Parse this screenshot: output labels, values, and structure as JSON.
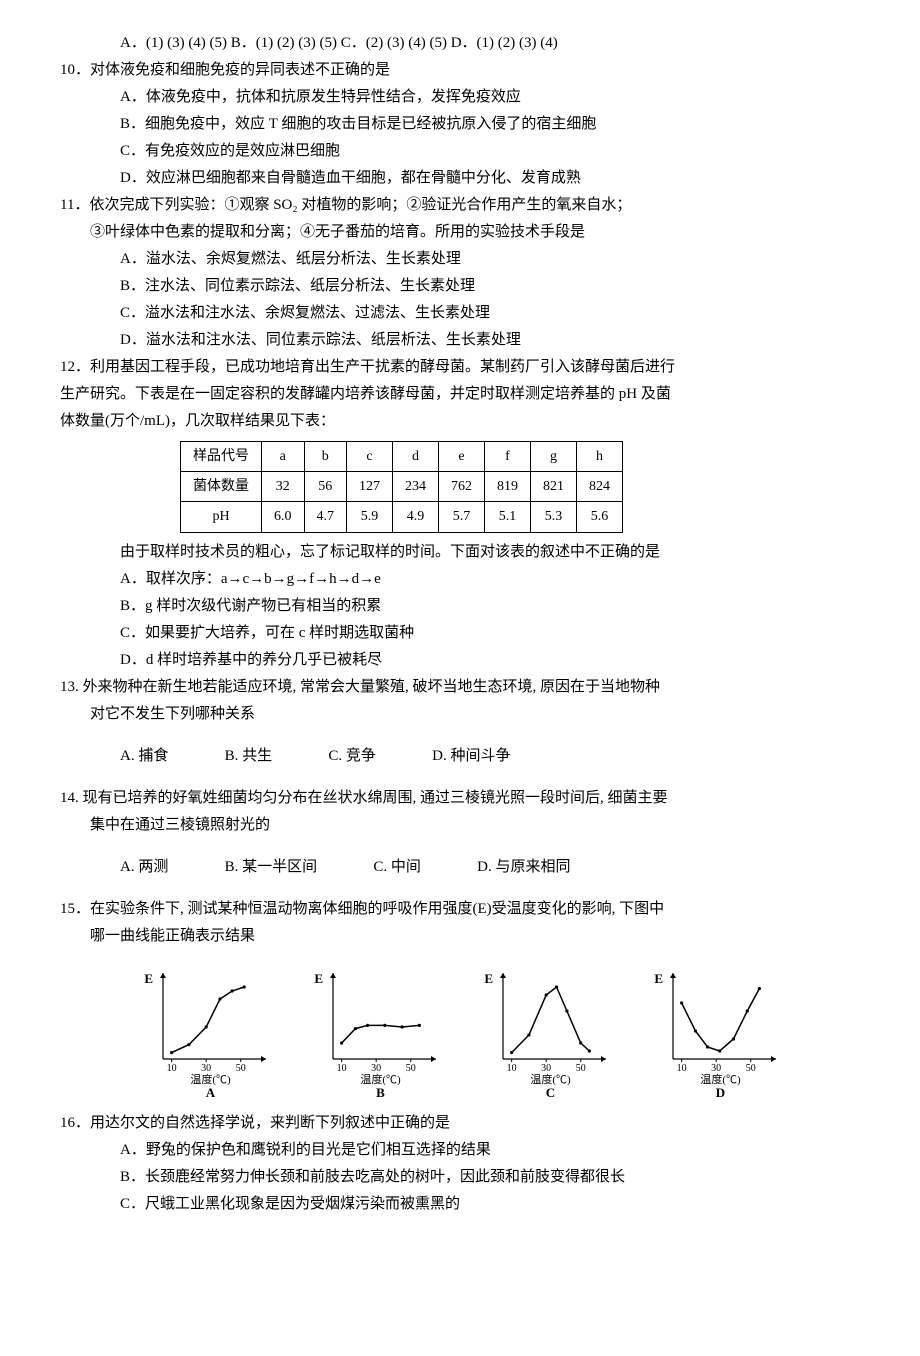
{
  "q9_opts": "A．(1) (3) (4) (5)  B．(1) (2) (3) (5)  C．(2) (3) (4) (5)  D．(1) (2) (3) (4)",
  "q10": {
    "stem": "10．对体液免疫和细胞免疫的异同表述不正确的是",
    "A": "A．体液免疫中，抗体和抗原发生特异性结合，发挥免疫效应",
    "B": "B．细胞免疫中，效应 T 细胞的攻击目标是已经被抗原入侵了的宿主细胞",
    "C": "C．有免疫效应的是效应淋巴细胞",
    "D": "D．效应淋巴细胞都来自骨髓造血干细胞，都在骨髓中分化、发育成熟"
  },
  "q11": {
    "stem1": "11．依次完成下列实验：①观察 SO₂ 对植物的影响；②验证光合作用产生的氧来自水；",
    "stem2": "③叶绿体中色素的提取和分离；④无子番茄的培育。所用的实验技术手段是",
    "A": "A．溢水法、余烬复燃法、纸层分析法、生长素处理",
    "B": "B．注水法、同位素示踪法、纸层分析法、生长素处理",
    "C": "C．溢水法和注水法、余烬复燃法、过滤法、生长素处理",
    "D": "D．溢水法和注水法、同位素示踪法、纸层析法、生长素处理"
  },
  "q12": {
    "stem1": "12．利用基因工程手段，已成功地培育出生产干扰素的酵母菌。某制药厂引入该酵母菌后进行",
    "stem2": "生产研究。下表是在一固定容积的发酵罐内培养该酵母菌，并定时取样测定培养基的 pH 及菌",
    "stem3": "体数量(万个/mL)，几次取样结果见下表：",
    "table": {
      "rows": [
        [
          "样品代号",
          "a",
          "b",
          "c",
          "d",
          "e",
          "f",
          "g",
          "h"
        ],
        [
          "菌体数量",
          "32",
          "56",
          "127",
          "234",
          "762",
          "819",
          "821",
          "824"
        ],
        [
          "pH",
          "6.0",
          "4.7",
          "5.9",
          "4.9",
          "5.7",
          "5.1",
          "5.3",
          "5.6"
        ]
      ]
    },
    "note": "由于取样时技术员的粗心，忘了标记取样的时间。下面对该表的叙述中不正确的是",
    "A": "A．取样次序：a→c→b→g→f→h→d→e",
    "B": "B．g 样时次级代谢产物已有相当的积累",
    "C": "C．如果要扩大培养，可在 c 样时期选取菌种",
    "D": "D．d 样时培养基中的养分几乎已被耗尽"
  },
  "q13": {
    "stem1": "13. 外来物种在新生地若能适应环境, 常常会大量繁殖, 破坏当地生态环境, 原因在于当地物种",
    "stem2": "对它不发生下列哪种关系",
    "opts": {
      "A": "A. 捕食",
      "B": "B. 共生",
      "C": "C. 竞争",
      "D": "D. 种间斗争"
    }
  },
  "q14": {
    "stem1": "14. 现有已培养的好氧姓细菌均匀分布在丝状水绵周围, 通过三棱镜光照一段时间后, 细菌主要",
    "stem2": "集中在通过三棱镜照射光的",
    "opts": {
      "A": "A. 两测",
      "B": "B. 某一半区间",
      "C": "C. 中间",
      "D": "D. 与原来相同"
    }
  },
  "q15": {
    "stem1": "15．在实验条件下, 测试某种恒温动物离体细胞的呼吸作用强度(E)受温度变化的影响, 下图中",
    "stem2": "哪一曲线能正确表示结果",
    "charts": {
      "x_ticks": [
        "10",
        "30",
        "50"
      ],
      "x_label": "温度(℃)",
      "y_label": "E",
      "labels": [
        "A",
        "B",
        "C",
        "D"
      ],
      "axis_color": "#000",
      "line_color": "#000",
      "A": [
        [
          10,
          8
        ],
        [
          20,
          18
        ],
        [
          30,
          40
        ],
        [
          38,
          75
        ],
        [
          45,
          85
        ],
        [
          52,
          90
        ]
      ],
      "B": [
        [
          10,
          20
        ],
        [
          18,
          38
        ],
        [
          25,
          42
        ],
        [
          35,
          42
        ],
        [
          45,
          40
        ],
        [
          55,
          42
        ]
      ],
      "C": [
        [
          10,
          8
        ],
        [
          20,
          30
        ],
        [
          30,
          80
        ],
        [
          36,
          90
        ],
        [
          42,
          60
        ],
        [
          50,
          20
        ],
        [
          55,
          10
        ]
      ],
      "D": [
        [
          10,
          70
        ],
        [
          18,
          35
        ],
        [
          25,
          15
        ],
        [
          32,
          10
        ],
        [
          40,
          25
        ],
        [
          48,
          60
        ],
        [
          55,
          88
        ]
      ]
    }
  },
  "q16": {
    "stem": "16．用达尔文的自然选择学说，来判断下列叙述中正确的是",
    "A": "A．野兔的保护色和鹰锐利的目光是它们相互选择的结果",
    "B": "B．长颈鹿经常努力伸长颈和前肢去吃高处的树叶，因此颈和前肢变得都很长",
    "C": "C．尺蛾工业黑化现象是因为受烟煤污染而被熏黑的"
  }
}
